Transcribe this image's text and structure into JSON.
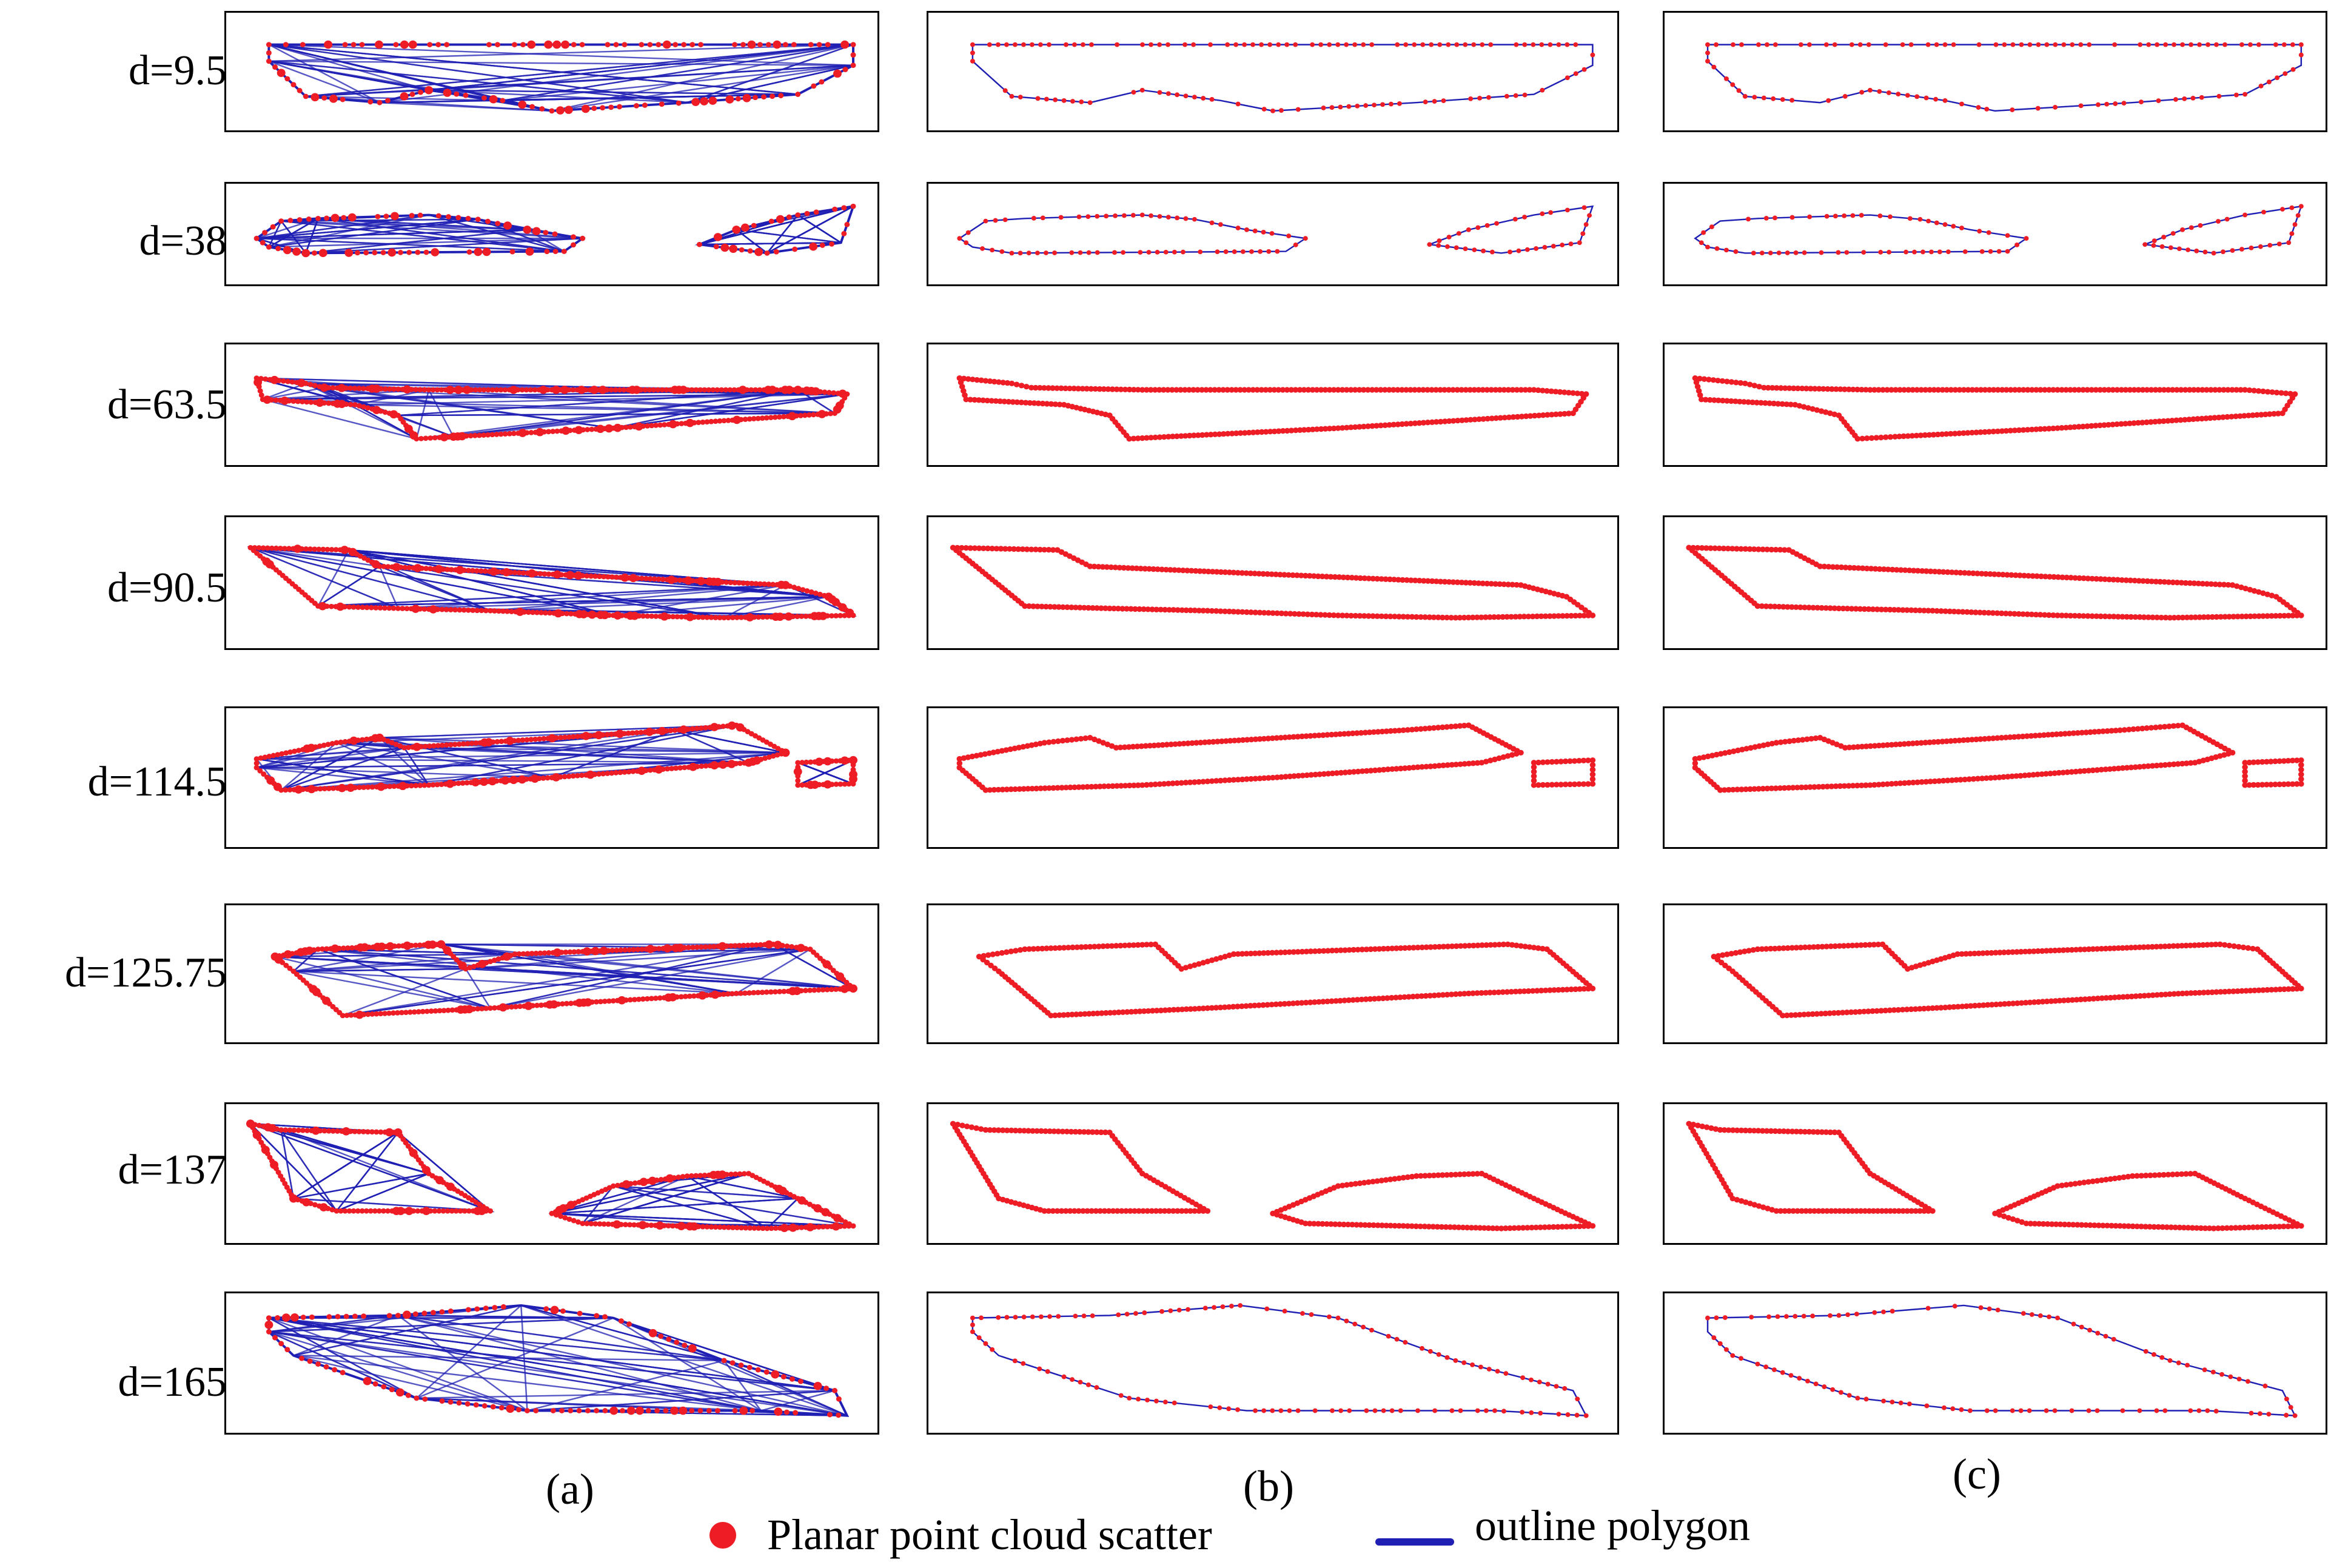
{
  "figure": {
    "column_labels": [
      "(a)",
      "(b)",
      "(c)"
    ],
    "rows": [
      {
        "label": "d=9.5"
      },
      {
        "label": "d=38"
      },
      {
        "label": "d=63.5"
      },
      {
        "label": "d=90.5"
      },
      {
        "label": "d=114.5"
      },
      {
        "label": "d=125.75"
      },
      {
        "label": "d=137"
      },
      {
        "label": "d=165"
      }
    ],
    "legend": {
      "scatter_label": "Planar point cloud scatter",
      "polygon_label": "outline polygon"
    },
    "colors": {
      "point": "#ee1c25",
      "polygon": "#1f1fb4",
      "frame": "#000000"
    }
  }
}
